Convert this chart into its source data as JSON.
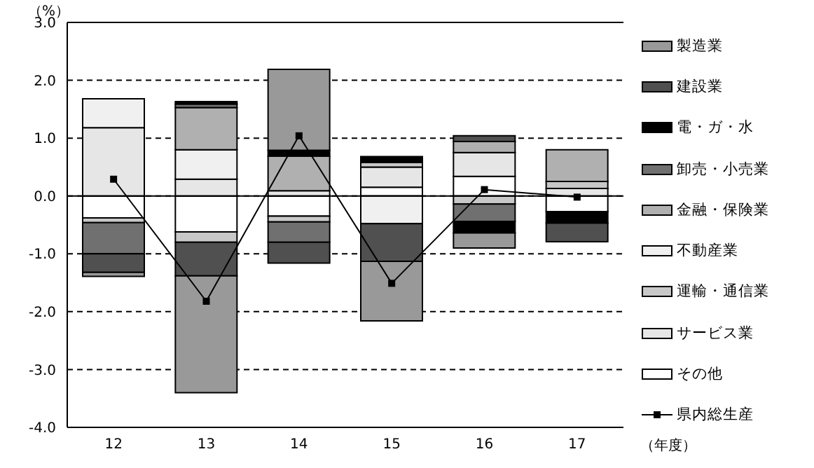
{
  "chart_data": {
    "type": "bar",
    "stacked": true,
    "ylabel": "（%）",
    "xlabel": "（年度）",
    "categories": [
      "12",
      "13",
      "14",
      "15",
      "16",
      "17"
    ],
    "ylim": [
      -4,
      3
    ],
    "yticks": [
      {
        "value": 3,
        "label": "3.0"
      },
      {
        "value": 2,
        "label": "2.0"
      },
      {
        "value": 1,
        "label": "1.0"
      },
      {
        "value": 0,
        "label": "0.0"
      },
      {
        "value": -1,
        "label": "-1.0"
      },
      {
        "value": -2,
        "label": "-2.0"
      },
      {
        "value": -3,
        "label": "-3.0"
      },
      {
        "value": -4,
        "label": "-4.0"
      }
    ],
    "grid": "y",
    "legend": "right",
    "marker": "square",
    "line_style": "solid",
    "series": [
      {
        "name": "その他",
        "color": "#ffffff",
        "values": [
          -0.38,
          -0.62,
          -0.35,
          0.15,
          0.34,
          -0.27
        ]
      },
      {
        "name": "サービス業",
        "color": "#e6e6e6",
        "values": [
          1.18,
          0.29,
          0.09,
          0.35,
          0.41,
          0.13
        ]
      },
      {
        "name": "運輸・通信業",
        "color": "#c8c8c8",
        "values": [
          -0.08,
          -0.18,
          -0.1,
          0.08,
          -0.14,
          0.12
        ]
      },
      {
        "name": "不動産業",
        "color": "#f0f0f0",
        "values": [
          0.5,
          0.51,
          null,
          -0.48,
          null,
          null
        ]
      },
      {
        "name": "金融・保険業",
        "color": "#b0b0b0",
        "values": [
          null,
          0.73,
          0.6,
          null,
          0.19,
          0.55
        ]
      },
      {
        "name": "卸売・小売業",
        "color": "#707070",
        "values": [
          -0.54,
          0.06,
          -0.35,
          null,
          -0.3,
          null
        ]
      },
      {
        "name": "電・ガ・水",
        "color": "#000000",
        "values": [
          null,
          0.04,
          0.1,
          0.1,
          -0.2,
          -0.2
        ]
      },
      {
        "name": "建設業",
        "color": "#505050",
        "values": [
          -0.32,
          -0.58,
          -0.36,
          -0.65,
          0.1,
          -0.32
        ]
      },
      {
        "name": "製造業",
        "color": "#999999",
        "values": [
          -0.07,
          -2.02,
          1.4,
          -1.03,
          -0.26,
          null
        ]
      },
      {
        "name": "県内総生産",
        "type": "line",
        "color": "#000000",
        "values": [
          0.29,
          -1.82,
          1.04,
          -1.51,
          0.11,
          -0.02
        ]
      }
    ]
  }
}
